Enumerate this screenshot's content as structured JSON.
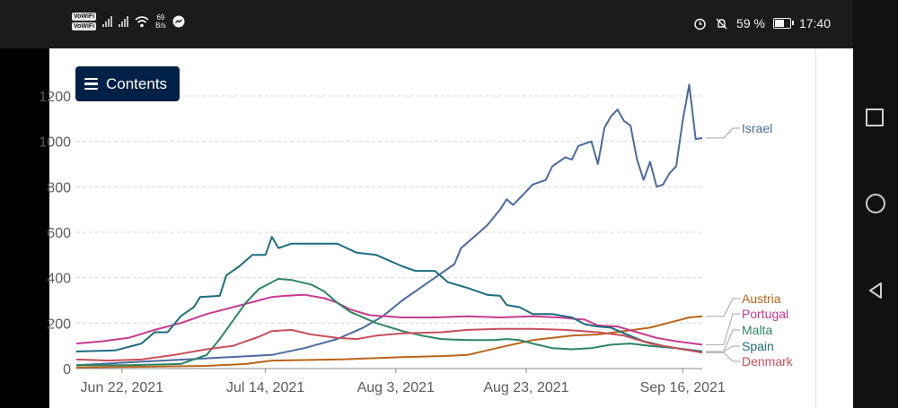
{
  "status_bar": {
    "vowifi_labels": [
      "VoWiFi",
      "VoWiFi"
    ],
    "network_speed_value": "69",
    "network_speed_unit": "B/s",
    "battery_percent": "59 %",
    "time": "17:40",
    "icons": [
      "vowifi-icon",
      "signal-icon",
      "wifi-icon",
      "messenger-icon",
      "alarm-icon",
      "mute-icon",
      "battery-icon"
    ]
  },
  "toolbar": {
    "contents_label": "Contents",
    "contents_icon": "hamburger-icon"
  },
  "navigation": {
    "icons": [
      "square-icon",
      "circle-icon",
      "triangle-back-icon"
    ]
  },
  "chart_data": {
    "type": "line",
    "title": "",
    "xlabel": "",
    "ylabel": "",
    "x_tick_labels": [
      "Jun 22, 2021",
      "Jul 14, 2021",
      "Aug 3, 2021",
      "Aug 23, 2021",
      "Sep 16, 2021"
    ],
    "x_tick_days": [
      7,
      29,
      49,
      69,
      93
    ],
    "y_tick_labels": [
      "0",
      "200",
      "400",
      "600",
      "800",
      "1000",
      "1200"
    ],
    "y_tick_values": [
      0,
      200,
      400,
      600,
      800,
      1000,
      1200
    ],
    "x_days_start": "Jun 15, 2021",
    "x_days_end": "Sep 17, 2021",
    "ylim": [
      0,
      1300
    ],
    "grid": "horizontal dashed",
    "legend": "right, labels at line ends",
    "series": [
      {
        "name": "Israel",
        "color": "#4c6a9c",
        "points": [
          [
            0,
            15
          ],
          [
            10,
            30
          ],
          [
            20,
            45
          ],
          [
            30,
            60
          ],
          [
            35,
            90
          ],
          [
            40,
            130
          ],
          [
            44,
            180
          ],
          [
            47,
            230
          ],
          [
            50,
            300
          ],
          [
            53,
            360
          ],
          [
            56,
            420
          ],
          [
            58,
            460
          ],
          [
            59,
            530
          ],
          [
            61,
            580
          ],
          [
            63,
            630
          ],
          [
            65,
            700
          ],
          [
            66,
            745
          ],
          [
            67,
            720
          ],
          [
            69,
            780
          ],
          [
            70,
            810
          ],
          [
            72,
            830
          ],
          [
            73,
            890
          ],
          [
            75,
            930
          ],
          [
            76,
            920
          ],
          [
            77,
            980
          ],
          [
            79,
            1000
          ],
          [
            80,
            900
          ],
          [
            81,
            1060
          ],
          [
            82,
            1110
          ],
          [
            83,
            1140
          ],
          [
            84,
            1090
          ],
          [
            85,
            1070
          ],
          [
            86,
            920
          ],
          [
            87,
            830
          ],
          [
            88,
            910
          ],
          [
            89,
            800
          ],
          [
            90,
            810
          ],
          [
            91,
            860
          ],
          [
            92,
            890
          ],
          [
            93,
            1090
          ],
          [
            94,
            1250
          ],
          [
            95,
            1010
          ],
          [
            96,
            1015
          ]
        ]
      },
      {
        "name": "Austria",
        "color": "#b8651b",
        "points": [
          [
            0,
            5
          ],
          [
            10,
            8
          ],
          [
            20,
            12
          ],
          [
            26,
            20
          ],
          [
            30,
            35
          ],
          [
            40,
            40
          ],
          [
            50,
            50
          ],
          [
            56,
            55
          ],
          [
            60,
            60
          ],
          [
            66,
            100
          ],
          [
            70,
            125
          ],
          [
            76,
            145
          ],
          [
            80,
            150
          ],
          [
            84,
            165
          ],
          [
            88,
            180
          ],
          [
            92,
            210
          ],
          [
            94,
            225
          ],
          [
            96,
            230
          ]
        ]
      },
      {
        "name": "Portugal",
        "color": "#c73a8f",
        "points": [
          [
            0,
            110
          ],
          [
            4,
            120
          ],
          [
            8,
            135
          ],
          [
            12,
            170
          ],
          [
            16,
            200
          ],
          [
            20,
            240
          ],
          [
            24,
            270
          ],
          [
            26,
            285
          ],
          [
            28,
            300
          ],
          [
            30,
            315
          ],
          [
            32,
            320
          ],
          [
            35,
            325
          ],
          [
            38,
            310
          ],
          [
            40,
            290
          ],
          [
            42,
            260
          ],
          [
            45,
            235
          ],
          [
            50,
            225
          ],
          [
            55,
            225
          ],
          [
            60,
            230
          ],
          [
            65,
            225
          ],
          [
            70,
            230
          ],
          [
            74,
            225
          ],
          [
            78,
            215
          ],
          [
            80,
            190
          ],
          [
            83,
            185
          ],
          [
            86,
            160
          ],
          [
            89,
            135
          ],
          [
            92,
            120
          ],
          [
            96,
            105
          ]
        ]
      },
      {
        "name": "Malta",
        "color": "#2c8465",
        "points": [
          [
            0,
            15
          ],
          [
            8,
            15
          ],
          [
            16,
            20
          ],
          [
            20,
            60
          ],
          [
            22,
            130
          ],
          [
            24,
            210
          ],
          [
            26,
            290
          ],
          [
            28,
            350
          ],
          [
            30,
            380
          ],
          [
            31,
            395
          ],
          [
            33,
            390
          ],
          [
            36,
            370
          ],
          [
            38,
            340
          ],
          [
            40,
            290
          ],
          [
            42,
            250
          ],
          [
            46,
            200
          ],
          [
            50,
            165
          ],
          [
            53,
            145
          ],
          [
            56,
            130
          ],
          [
            60,
            125
          ],
          [
            64,
            125
          ],
          [
            66,
            130
          ],
          [
            68,
            125
          ],
          [
            70,
            110
          ],
          [
            73,
            90
          ],
          [
            76,
            85
          ],
          [
            79,
            90
          ],
          [
            82,
            105
          ],
          [
            85,
            110
          ],
          [
            88,
            100
          ],
          [
            92,
            90
          ],
          [
            96,
            75
          ]
        ]
      },
      {
        "name": "Spain",
        "color": "#1d6d7c",
        "points": [
          [
            0,
            75
          ],
          [
            6,
            80
          ],
          [
            10,
            110
          ],
          [
            12,
            160
          ],
          [
            14,
            160
          ],
          [
            16,
            230
          ],
          [
            18,
            270
          ],
          [
            19,
            315
          ],
          [
            22,
            320
          ],
          [
            23,
            410
          ],
          [
            25,
            450
          ],
          [
            27,
            500
          ],
          [
            29,
            500
          ],
          [
            30,
            580
          ],
          [
            31,
            530
          ],
          [
            33,
            550
          ],
          [
            40,
            550
          ],
          [
            43,
            510
          ],
          [
            46,
            500
          ],
          [
            50,
            450
          ],
          [
            52,
            430
          ],
          [
            55,
            430
          ],
          [
            57,
            380
          ],
          [
            60,
            355
          ],
          [
            63,
            325
          ],
          [
            65,
            320
          ],
          [
            66,
            280
          ],
          [
            68,
            270
          ],
          [
            70,
            240
          ],
          [
            73,
            240
          ],
          [
            76,
            225
          ],
          [
            78,
            195
          ],
          [
            80,
            185
          ],
          [
            82,
            180
          ],
          [
            84,
            155
          ],
          [
            87,
            120
          ],
          [
            90,
            100
          ],
          [
            93,
            85
          ],
          [
            96,
            75
          ]
        ]
      },
      {
        "name": "Denmark",
        "color": "#c94f5c",
        "points": [
          [
            0,
            40
          ],
          [
            5,
            35
          ],
          [
            10,
            40
          ],
          [
            15,
            60
          ],
          [
            20,
            85
          ],
          [
            24,
            100
          ],
          [
            28,
            140
          ],
          [
            30,
            165
          ],
          [
            33,
            170
          ],
          [
            36,
            150
          ],
          [
            40,
            135
          ],
          [
            43,
            130
          ],
          [
            46,
            145
          ],
          [
            50,
            155
          ],
          [
            56,
            160
          ],
          [
            60,
            170
          ],
          [
            65,
            175
          ],
          [
            70,
            175
          ],
          [
            75,
            170
          ],
          [
            80,
            160
          ],
          [
            84,
            145
          ],
          [
            88,
            110
          ],
          [
            92,
            90
          ],
          [
            96,
            70
          ]
        ]
      }
    ]
  }
}
